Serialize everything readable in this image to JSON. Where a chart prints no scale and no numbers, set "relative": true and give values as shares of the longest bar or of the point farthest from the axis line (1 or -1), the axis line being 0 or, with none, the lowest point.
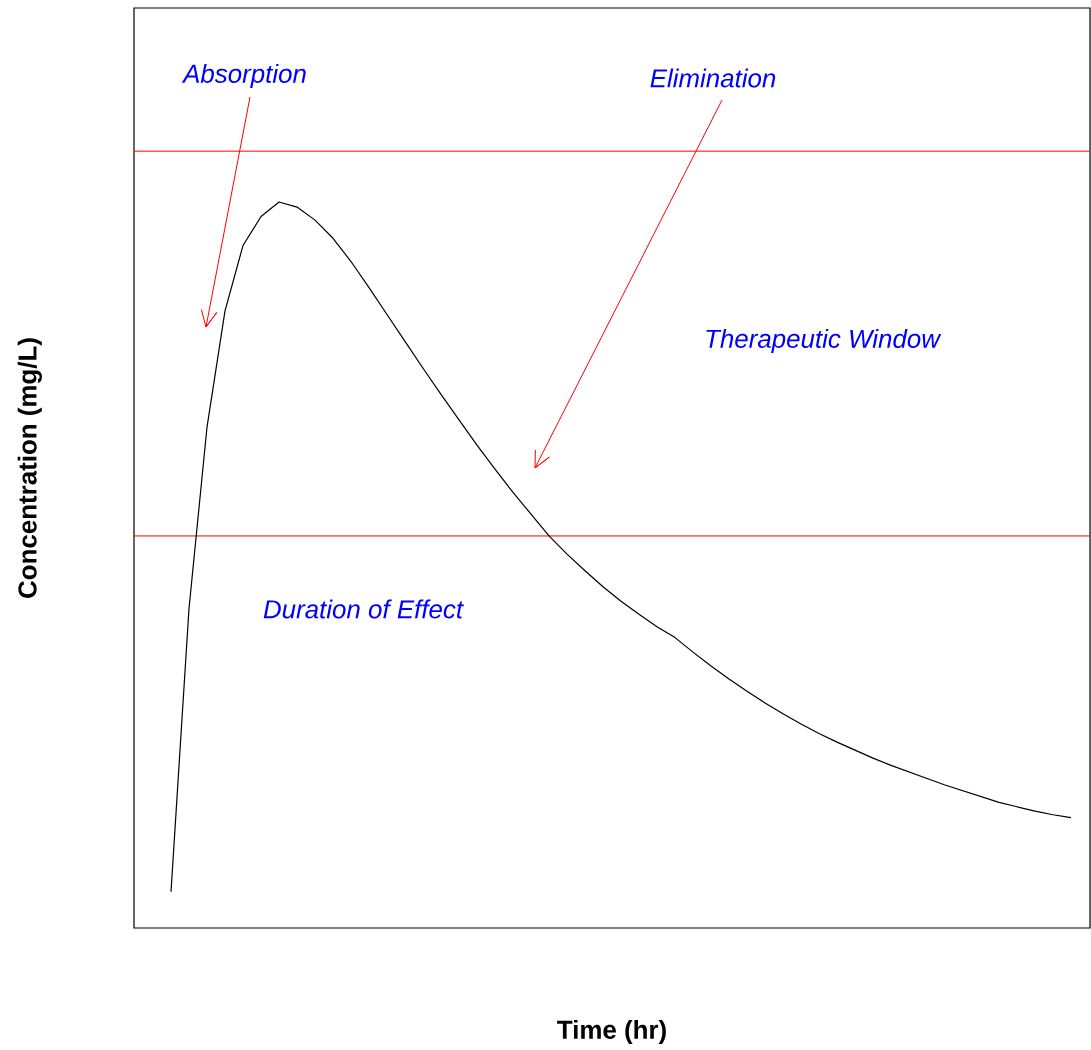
{
  "chart_data": {
    "type": "line",
    "relative": true,
    "xlabel": "Time (hr)",
    "ylabel": "Concentration (mg/L)",
    "categories": [
      null,
      null,
      null,
      null,
      null,
      null,
      null,
      null,
      null,
      null,
      null,
      null,
      null,
      null,
      null,
      null,
      null,
      null,
      null,
      null,
      null,
      null,
      null,
      null,
      null,
      null,
      null,
      null,
      null,
      null,
      null,
      null,
      null,
      null,
      null,
      null,
      null,
      null,
      null,
      null,
      null,
      null,
      null,
      null,
      null,
      null,
      null,
      null,
      null,
      null,
      null
    ],
    "values": [
      0.05,
      0.44,
      0.69,
      0.85,
      0.94,
      0.98,
      1.0,
      0.993,
      0.975,
      0.95,
      0.918,
      0.882,
      0.845,
      0.808,
      0.771,
      0.735,
      0.7,
      0.665,
      0.632,
      0.6,
      0.57,
      0.54,
      0.515,
      0.492,
      0.47,
      0.45,
      0.432,
      0.415,
      0.4,
      0.38,
      0.361,
      0.343,
      0.326,
      0.31,
      0.295,
      0.281,
      0.268,
      0.256,
      0.245,
      0.234,
      0.224,
      0.215,
      0.206,
      0.197,
      0.189,
      0.181,
      0.173,
      0.167,
      0.161,
      0.156,
      0.152
    ],
    "color": "#000000",
    "ref_lines": [
      {
        "axis": "y",
        "value": 1.07,
        "color": "#ff0000"
      },
      {
        "axis": "y",
        "value": 0.54,
        "color": "#ff0000"
      }
    ],
    "annotations": [
      "Absorption",
      "Elimination",
      "Therapeutic Window",
      "Duration of Effect"
    ]
  }
}
